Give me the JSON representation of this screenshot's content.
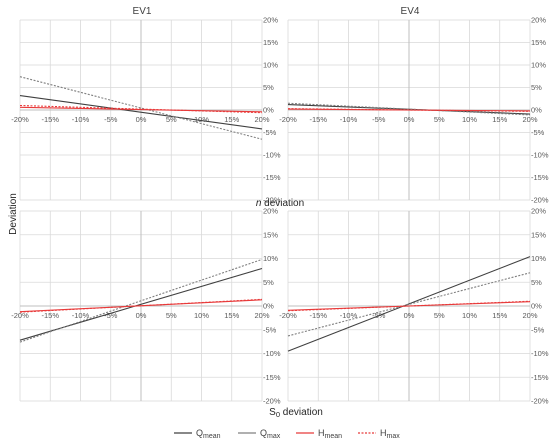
{
  "figure": {
    "ylabel": "Deviation",
    "xlabel_top": "n deviation",
    "xlabel_top_var": "n",
    "xlabel_top_rest": " deviation",
    "xlabel_bottom": "S0 deviation",
    "xlabel_bottom_main": "S",
    "xlabel_bottom_sub": "0",
    "xlabel_bottom_rest": " deviation"
  },
  "legend": [
    {
      "base": "Q",
      "sub": "mean",
      "color": "#404040",
      "dash": ""
    },
    {
      "base": "Q",
      "sub": "max",
      "color": "#808080",
      "dash": ""
    },
    {
      "base": "H",
      "sub": "mean",
      "color": "#e83a3a",
      "dash": ""
    },
    {
      "base": "H",
      "sub": "max",
      "color": "#e83a3a",
      "dash": "2,1.5"
    }
  ],
  "chart_data": [
    {
      "type": "line",
      "title": "EV1",
      "x": [
        -20,
        20
      ],
      "xticks": [
        "-20%",
        "-15%",
        "-10%",
        "-5%",
        "0%",
        "5%",
        "10%",
        "15%",
        "20%"
      ],
      "yticks": [
        "20%",
        "15%",
        "10%",
        "5%",
        "0%",
        "-5%",
        "-10%",
        "-15%",
        "-20%"
      ],
      "xlim": [
        -20,
        20
      ],
      "ylim": [
        -20,
        20
      ],
      "series": [
        {
          "name": "Qmean",
          "color": "#404040",
          "dash": "",
          "values": [
            3.2,
            -4.2
          ]
        },
        {
          "name": "Qmax",
          "color": "#808080",
          "dash": "2,1.5",
          "values": [
            7.4,
            -6.5
          ]
        },
        {
          "name": "Hmean",
          "color": "#e83a3a",
          "dash": "",
          "values": [
            0.6,
            -0.4
          ]
        },
        {
          "name": "Hmax",
          "color": "#e83a3a",
          "dash": "2,1.5",
          "values": [
            1.0,
            -0.6
          ]
        }
      ]
    },
    {
      "type": "line",
      "title": "EV4",
      "x": [
        -20,
        20
      ],
      "xticks": [
        "-20%",
        "-15%",
        "-10%",
        "-5%",
        "0%",
        "5%",
        "10%",
        "15%",
        "20%"
      ],
      "yticks": [
        "20%",
        "15%",
        "10%",
        "5%",
        "0%",
        "-5%",
        "-10%",
        "-15%",
        "-20%"
      ],
      "xlim": [
        -20,
        20
      ],
      "ylim": [
        -20,
        20
      ],
      "series": [
        {
          "name": "Qmean",
          "color": "#404040",
          "dash": "",
          "values": [
            1.2,
            -0.9
          ]
        },
        {
          "name": "Qmax",
          "color": "#808080",
          "dash": "2,1.5",
          "values": [
            1.5,
            -1.1
          ]
        },
        {
          "name": "Hmean",
          "color": "#e83a3a",
          "dash": "",
          "values": [
            0.2,
            -0.2
          ]
        },
        {
          "name": "Hmax",
          "color": "#e83a3a",
          "dash": "2,1.5",
          "values": [
            0.3,
            -0.3
          ]
        }
      ]
    },
    {
      "type": "line",
      "title": "",
      "x": [
        -20,
        20
      ],
      "xticks": [
        "-20%",
        "-15%",
        "-10%",
        "-5%",
        "0%",
        "5%",
        "10%",
        "15%",
        "20%"
      ],
      "yticks": [
        "20%",
        "15%",
        "10%",
        "5%",
        "0%",
        "-5%",
        "-10%",
        "-15%",
        "-20%"
      ],
      "xlim": [
        -20,
        20
      ],
      "ylim": [
        -20,
        20
      ],
      "series": [
        {
          "name": "Qmean",
          "color": "#404040",
          "dash": "",
          "values": [
            -7.2,
            7.9
          ]
        },
        {
          "name": "Qmax",
          "color": "#808080",
          "dash": "2,1.5",
          "values": [
            -7.6,
            9.8
          ]
        },
        {
          "name": "Hmean",
          "color": "#e83a3a",
          "dash": "",
          "values": [
            -1.2,
            1.3
          ]
        },
        {
          "name": "Hmax",
          "color": "#e83a3a",
          "dash": "2,1.5",
          "values": [
            -1.3,
            1.4
          ]
        }
      ]
    },
    {
      "type": "line",
      "title": "",
      "x": [
        -20,
        20
      ],
      "xticks": [
        "-20%",
        "-15%",
        "-10%",
        "-5%",
        "0%",
        "5%",
        "10%",
        "15%",
        "20%"
      ],
      "yticks": [
        "20%",
        "15%",
        "10%",
        "5%",
        "0%",
        "-5%",
        "-10%",
        "-15%",
        "-20%"
      ],
      "xlim": [
        -20,
        20
      ],
      "ylim": [
        -20,
        20
      ],
      "series": [
        {
          "name": "Qmean",
          "color": "#404040",
          "dash": "",
          "values": [
            -9.5,
            10.4
          ]
        },
        {
          "name": "Qmax",
          "color": "#808080",
          "dash": "2,1.5",
          "values": [
            -6.3,
            7.0
          ]
        },
        {
          "name": "Hmean",
          "color": "#e83a3a",
          "dash": "",
          "values": [
            -0.9,
            0.9
          ]
        },
        {
          "name": "Hmax",
          "color": "#e83a3a",
          "dash": "2,1.5",
          "values": [
            -1.0,
            1.0
          ]
        }
      ]
    }
  ]
}
